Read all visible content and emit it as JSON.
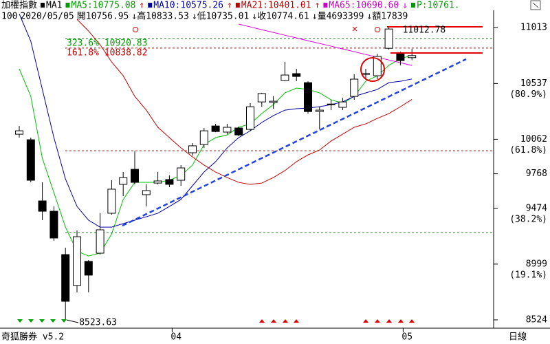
{
  "header": {
    "line1": [
      {
        "text": "加權指數",
        "color": "#000000"
      },
      {
        "text": "MA1",
        "color": "#000000",
        "marker": true
      },
      {
        "text": "MA5:10775.08",
        "color": "#009900",
        "marker": true
      },
      {
        "text": "↑",
        "color": "#c00000"
      },
      {
        "text": "MA10:10575.26",
        "color": "#0000a0",
        "marker": true
      },
      {
        "text": "↑",
        "color": "#c00000"
      },
      {
        "text": "MA21:10401.01",
        "color": "#c00000",
        "marker": true
      },
      {
        "text": "↑",
        "color": "#c00000"
      },
      {
        "text": "MA65:10690.60",
        "color": "#d000d0",
        "marker": true
      },
      {
        "text": "↓",
        "color": "#d000d0"
      },
      {
        "text": "P:10761.",
        "color": "#009900",
        "marker": true
      }
    ],
    "line2": [
      "100",
      "2020/05/05",
      "開10756.95",
      "↓高10833.53",
      "↓低10735.01",
      "↓收10774.61",
      "↓量4693399",
      "↓額17839"
    ]
  },
  "footer": {
    "brand": "奇狐勝券 v5.2",
    "period": "日線"
  },
  "chart_data": {
    "type": "candlestick",
    "categories": [
      null,
      null,
      null,
      null,
      null,
      null,
      null,
      null,
      null,
      null,
      null,
      null,
      null,
      "04",
      null,
      null,
      null,
      null,
      null,
      null,
      null,
      null,
      null,
      null,
      null,
      null,
      null,
      null,
      null,
      null,
      null,
      null,
      null,
      "05",
      null
    ],
    "open": [
      10105,
      10058,
      9537,
      9449,
      9080,
      8817,
      9022,
      9092,
      9432,
      9678,
      9806,
      9590,
      9689,
      9719,
      9713,
      9947,
      10017,
      10175,
      10123,
      10158,
      10146,
      10380,
      10375,
      10562,
      10621,
      10544,
      10298,
      10357,
      10334,
      10427,
      10615,
      10603,
      10837,
      10790,
      10756.95
    ],
    "high": [
      10175,
      10076,
      9695,
      9490,
      9139,
      9285,
      9033,
      9432,
      9713,
      9783,
      9959,
      9678,
      9783,
      9754,
      9842,
      10029,
      10158,
      10193,
      10193,
      10170,
      10369,
      10457,
      10427,
      10720,
      10662,
      10556,
      10339,
      10398,
      10415,
      10615,
      10662,
      10790,
      11012.78,
      10808,
      10833.53
    ],
    "low": [
      10076,
      9695,
      9373,
      9197,
      8523.63,
      8758,
      8758,
      9080,
      9420,
      9578,
      9678,
      9490,
      9678,
      9654,
      9666,
      9924,
      9988,
      10122,
      10105,
      10088,
      10134,
      10339,
      10322,
      10556,
      10556,
      10281,
      10146,
      10310,
      10310,
      10398,
      10574,
      10574,
      10826,
      10691,
      10735.01
    ],
    "close": [
      10134,
      9713,
      9449,
      9221,
      8682,
      9232,
      8905,
      9291,
      9637,
      9736,
      9695,
      9625,
      9707,
      9678,
      9818,
      10006,
      10134,
      10128,
      10164,
      10099,
      10339,
      10451,
      10386,
      10609,
      10597,
      10298,
      10310,
      10362,
      10380,
      10574,
      10621,
      10767,
      11001,
      10732,
      10774.61
    ],
    "up_color": "#ffffff",
    "down_color": "#000000",
    "series": [
      {
        "color": "#00c000",
        "values": [
          10662,
          10427,
          9900,
          9607,
          9314,
          9109,
          9068,
          9092,
          9256,
          9549,
          9695,
          9695,
          9695,
          9713,
          9754,
          9842,
          10017,
          10076,
          10099,
          10164,
          10193,
          10281,
          10357,
          10457,
          10498,
          10486,
          10457,
          10398,
          10369,
          10427,
          10556,
          10603,
          10691,
          10749,
          10775.08
        ]
      },
      {
        "color": "#0000a0",
        "values": [
          11130,
          10896,
          10486,
          10076,
          9724,
          9490,
          9373,
          9314,
          9314,
          9344,
          9373,
          9402,
          9432,
          9490,
          9549,
          9666,
          9783,
          9871,
          9988,
          10076,
          10134,
          10205,
          10263,
          10310,
          10322,
          10328,
          10339,
          10357,
          10380,
          10427,
          10457,
          10486,
          10544,
          10556,
          10575.26
        ]
      },
      {
        "color": "#c00000",
        "values": [
          null,
          null,
          null,
          null,
          null,
          11083,
          10984,
          10867,
          10720,
          10603,
          10427,
          10310,
          10164,
          10076,
          9988,
          9912,
          9842,
          9783,
          9736,
          9695,
          9678,
          9689,
          9736,
          9795,
          9871,
          9929,
          9970,
          10047,
          10105,
          10164,
          10193,
          10240,
          10281,
          10339,
          10401.01
        ]
      },
      {
        "color": "#e000e0",
        "values": [
          null,
          null,
          null,
          null,
          null,
          null,
          null,
          null,
          null,
          null,
          null,
          null,
          null,
          null,
          null,
          null,
          null,
          null,
          null,
          11042,
          11019,
          10995,
          10972,
          10948,
          10925,
          10901,
          10878,
          10855,
          10831,
          10808,
          10784,
          10761,
          10737,
          10714,
          10690.6
        ]
      }
    ],
    "ylim": [
      8465,
      11160
    ],
    "yticks": [
      11013,
      10537,
      10062,
      9768,
      9474,
      8999,
      8524
    ],
    "ytick_notes": [
      {
        "value": 10537,
        "label": "(80.9%)"
      },
      {
        "value": 10062,
        "label": "(61.8%)"
      },
      {
        "value": 9474,
        "label": "(38.2%)"
      },
      {
        "value": 8999,
        "label": "(19.1%)"
      }
    ],
    "levels": [
      {
        "value": 10920.83,
        "label": "323.6% 10920.83",
        "color": "#009900"
      },
      {
        "value": 10838.82,
        "label": "161.8% 10838.82",
        "color": "#c00000"
      },
      {
        "value": 9964,
        "color": "#c00000"
      },
      {
        "value": 9268,
        "color": "#009900"
      }
    ],
    "annotations": [
      {
        "value": 11012.78,
        "label": "11012.78",
        "index": 32
      },
      {
        "value": 8523.63,
        "label": "8523.63",
        "index": 4
      }
    ]
  }
}
